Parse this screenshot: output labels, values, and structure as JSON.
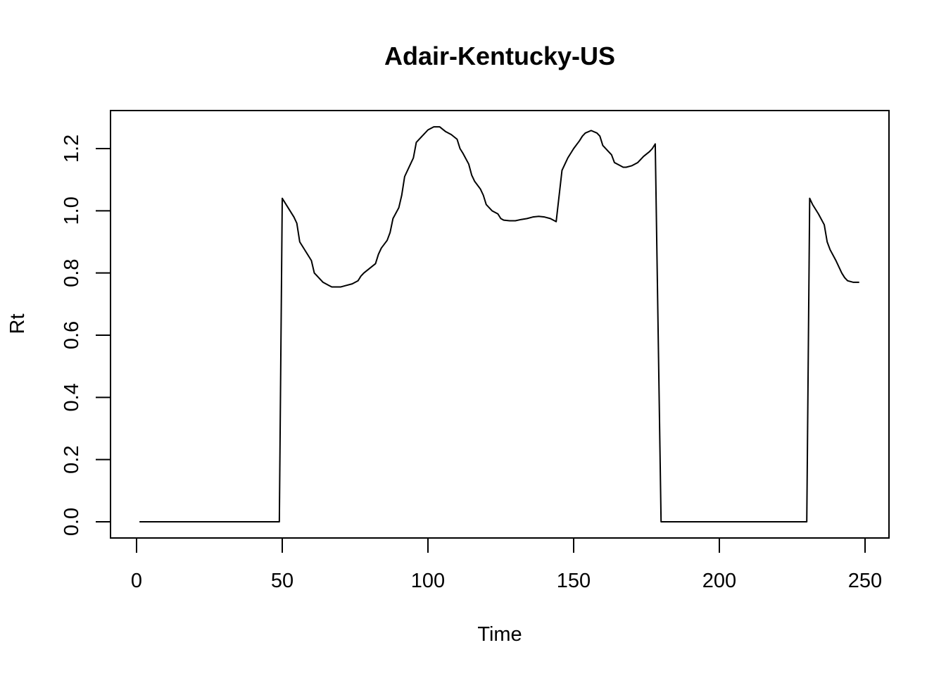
{
  "chart_data": {
    "type": "line",
    "title": "Adair-Kentucky-US",
    "xlabel": "Time",
    "ylabel": "Rt",
    "xlim": [
      1,
      248
    ],
    "ylim": [
      0,
      1.27
    ],
    "xticks": [
      0,
      50,
      100,
      150,
      200,
      250
    ],
    "xtick_labels": [
      "0",
      "50",
      "100",
      "150",
      "200",
      "250"
    ],
    "yticks": [
      0.0,
      0.2,
      0.4,
      0.6,
      0.8,
      1.0,
      1.2
    ],
    "ytick_labels": [
      "0.0",
      "0.2",
      "0.4",
      "0.6",
      "0.8",
      "1.0",
      "1.2"
    ],
    "grid": false,
    "line_color": "#000000",
    "series": [
      {
        "x": [
          1,
          49,
          50,
          52,
          54,
          55,
          56,
          58,
          60,
          61,
          62,
          64,
          66,
          67,
          68,
          70,
          72,
          74,
          76,
          77,
          78,
          80,
          82,
          83,
          84,
          86,
          87,
          88,
          90,
          91,
          92,
          94,
          95,
          96,
          98,
          100,
          102,
          104,
          106,
          108,
          110,
          111,
          112,
          114,
          115,
          116,
          118,
          119,
          120,
          122,
          124,
          125,
          126,
          128,
          130,
          132,
          134,
          136,
          138,
          140,
          142,
          144,
          146,
          147,
          148,
          150,
          152,
          153,
          154,
          156,
          158,
          159,
          160,
          162,
          163,
          164,
          166,
          167,
          168,
          170,
          172,
          174,
          176,
          177,
          178,
          180,
          181,
          182,
          183,
          184,
          200,
          230,
          231,
          232,
          234,
          236,
          237,
          238,
          240,
          242,
          243,
          244,
          246,
          248
        ],
        "y": [
          0.0,
          0.0,
          1.04,
          1.01,
          0.98,
          0.96,
          0.9,
          0.87,
          0.84,
          0.8,
          0.79,
          0.77,
          0.76,
          0.755,
          0.755,
          0.755,
          0.76,
          0.765,
          0.775,
          0.79,
          0.8,
          0.815,
          0.83,
          0.86,
          0.88,
          0.905,
          0.93,
          0.975,
          1.01,
          1.05,
          1.11,
          1.15,
          1.17,
          1.22,
          1.24,
          1.26,
          1.27,
          1.27,
          1.255,
          1.245,
          1.23,
          1.2,
          1.185,
          1.15,
          1.115,
          1.095,
          1.07,
          1.05,
          1.02,
          1.0,
          0.99,
          0.975,
          0.97,
          0.968,
          0.968,
          0.972,
          0.975,
          0.98,
          0.982,
          0.98,
          0.975,
          0.965,
          1.13,
          1.15,
          1.17,
          1.2,
          1.225,
          1.24,
          1.25,
          1.258,
          1.25,
          1.24,
          1.21,
          1.19,
          1.18,
          1.155,
          1.145,
          1.14,
          1.14,
          1.145,
          1.155,
          1.175,
          1.19,
          1.2,
          1.215,
          0.0,
          0.0,
          0.0,
          0.0,
          0.0,
          0.0,
          0.0,
          1.04,
          1.02,
          0.99,
          0.955,
          0.9,
          0.875,
          0.84,
          0.8,
          0.785,
          0.775,
          0.77,
          0.77
        ]
      }
    ]
  }
}
